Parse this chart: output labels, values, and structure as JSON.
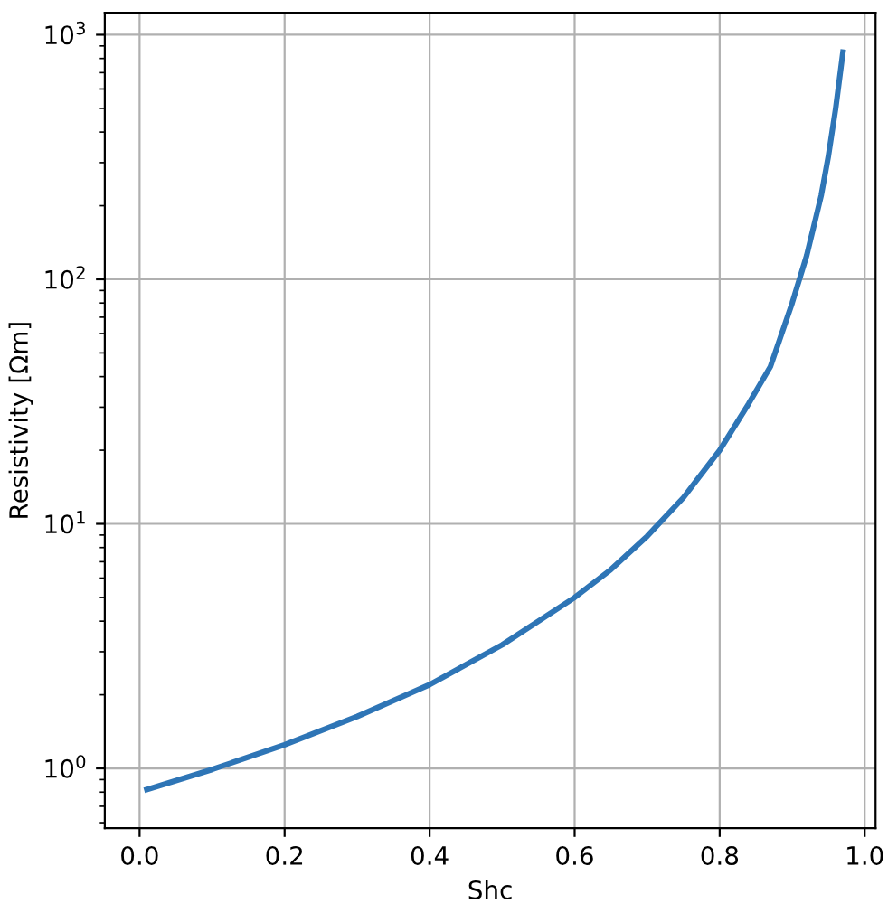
{
  "chart_data": {
    "type": "line",
    "xlabel": "Shc",
    "ylabel": "Resistivity [Ωm]",
    "x": [
      0.01,
      0.1,
      0.2,
      0.3,
      0.4,
      0.5,
      0.6,
      0.65,
      0.7,
      0.75,
      0.8,
      0.84,
      0.87,
      0.9,
      0.92,
      0.94,
      0.95,
      0.96,
      0.97
    ],
    "series": [
      {
        "color": "#2e75b6",
        "values": [
          0.82,
          0.99,
          1.25,
          1.63,
          2.2,
          3.2,
          5.0,
          6.5,
          8.9,
          12.8,
          20,
          31,
          44,
          80,
          125,
          220,
          320,
          500,
          850
        ]
      }
    ],
    "log": "y",
    "xlim": [
      -0.048,
      1.015
    ],
    "ylim": [
      0.57,
      1230
    ],
    "xticks": [
      {
        "value": 0.0,
        "label": "0.0"
      },
      0.2,
      0.4,
      0.6,
      0.8,
      {
        "value": 1.0,
        "label": "1.0"
      }
    ],
    "yticks": [
      {
        "value": 1,
        "label": "10$^{0}$"
      },
      {
        "value": 10,
        "label": "10$^{1}$"
      },
      {
        "value": 100,
        "label": "10$^{2}$"
      },
      {
        "value": 1000,
        "label": "10$^{3}$"
      }
    ],
    "grid": true,
    "marker": "none",
    "line_style": "solid",
    "legend": false
  }
}
